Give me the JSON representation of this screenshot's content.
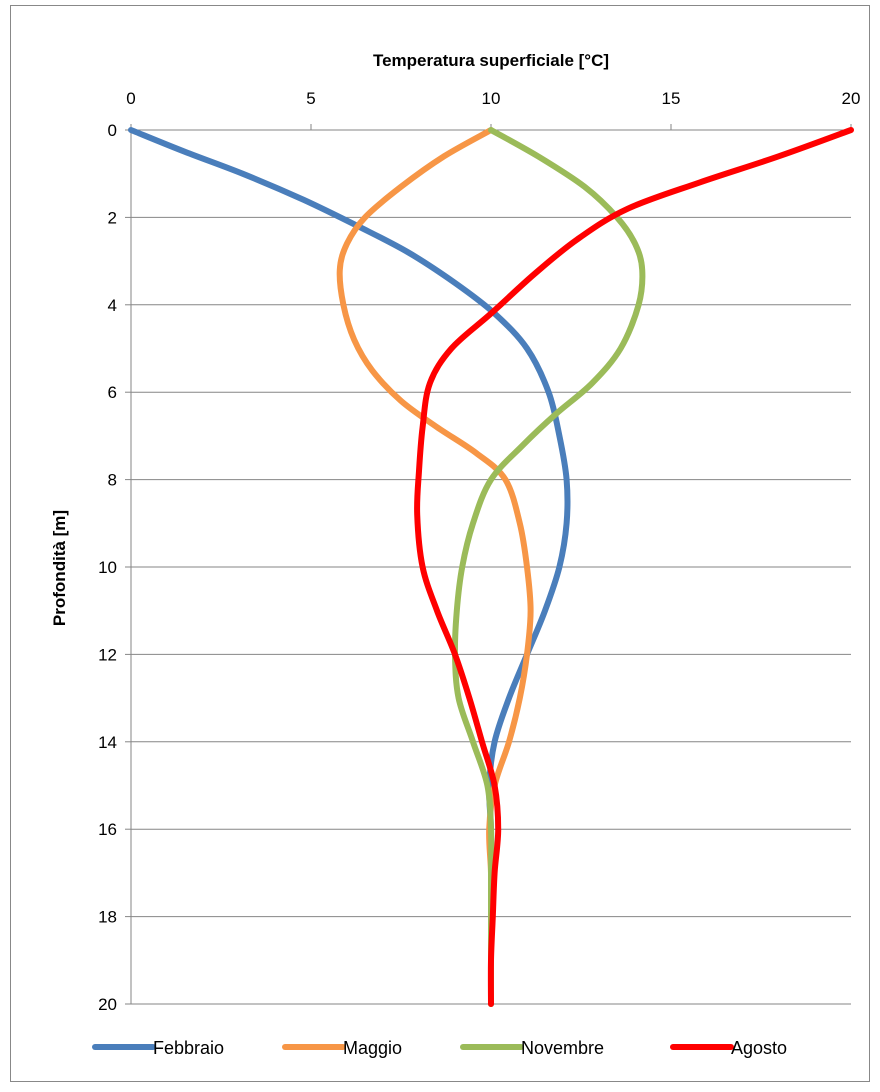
{
  "chart_data": {
    "type": "line",
    "title": "",
    "xlabel": "Temperatura  superficiale [°C]",
    "ylabel": "Profondità [m]",
    "x_axis_position": "top",
    "y_axis_inverted": true,
    "xlim": [
      0,
      20
    ],
    "ylim": [
      0,
      20
    ],
    "xticks": [
      0,
      5,
      10,
      15,
      20
    ],
    "yticks": [
      0,
      2,
      4,
      6,
      8,
      10,
      12,
      14,
      16,
      18,
      20
    ],
    "grid": "horizontal",
    "legend": "bottom",
    "series": [
      {
        "name": "Febbraio",
        "color": "#4a7ebb",
        "points": [
          [
            0,
            0
          ],
          [
            1.5,
            0.5
          ],
          [
            3.1,
            1
          ],
          [
            4.8,
            1.6
          ],
          [
            6.3,
            2.2
          ],
          [
            7.7,
            2.8
          ],
          [
            9,
            3.5
          ],
          [
            10.1,
            4.2
          ],
          [
            11,
            5
          ],
          [
            11.6,
            6
          ],
          [
            11.9,
            7
          ],
          [
            12.1,
            8
          ],
          [
            12.1,
            9
          ],
          [
            11.9,
            10
          ],
          [
            11.5,
            11
          ],
          [
            11.0,
            12
          ],
          [
            10.5,
            13
          ],
          [
            10.1,
            14
          ],
          [
            9.95,
            15
          ],
          [
            10,
            16
          ],
          [
            10,
            17
          ],
          [
            10,
            18
          ],
          [
            10,
            19
          ],
          [
            10,
            20
          ]
        ]
      },
      {
        "name": "Maggio",
        "color": "#f79646",
        "points": [
          [
            10,
            0
          ],
          [
            8.7,
            0.6
          ],
          [
            7.5,
            1.3
          ],
          [
            6.5,
            2
          ],
          [
            6.0,
            2.6
          ],
          [
            5.8,
            3.2
          ],
          [
            5.9,
            4
          ],
          [
            6.2,
            4.8
          ],
          [
            6.7,
            5.5
          ],
          [
            7.5,
            6.2
          ],
          [
            8.5,
            6.8
          ],
          [
            9.6,
            7.4
          ],
          [
            10.4,
            8
          ],
          [
            10.8,
            9
          ],
          [
            11.0,
            10
          ],
          [
            11.1,
            11
          ],
          [
            11.0,
            12
          ],
          [
            10.8,
            13
          ],
          [
            10.5,
            14
          ],
          [
            10.1,
            15
          ],
          [
            9.95,
            16
          ],
          [
            10,
            17
          ],
          [
            10,
            18
          ],
          [
            10,
            19
          ],
          [
            10,
            20
          ]
        ]
      },
      {
        "name": "Novembre",
        "color": "#9bbb59",
        "points": [
          [
            10,
            0
          ],
          [
            11.3,
            0.6
          ],
          [
            12.6,
            1.3
          ],
          [
            13.5,
            2
          ],
          [
            14.0,
            2.6
          ],
          [
            14.2,
            3.2
          ],
          [
            14.1,
            4
          ],
          [
            13.6,
            5
          ],
          [
            12.8,
            5.8
          ],
          [
            11.8,
            6.5
          ],
          [
            10.9,
            7.2
          ],
          [
            10.0,
            8
          ],
          [
            9.5,
            9
          ],
          [
            9.2,
            10
          ],
          [
            9.05,
            11
          ],
          [
            9.0,
            12
          ],
          [
            9.1,
            13
          ],
          [
            9.5,
            14
          ],
          [
            9.9,
            15
          ],
          [
            10,
            16
          ],
          [
            10,
            17
          ],
          [
            10,
            18
          ],
          [
            10,
            19
          ],
          [
            10,
            20
          ]
        ]
      },
      {
        "name": "Agosto",
        "color": "#ff0000",
        "points": [
          [
            20,
            0
          ],
          [
            18.0,
            0.6
          ],
          [
            15.8,
            1.2
          ],
          [
            13.8,
            1.8
          ],
          [
            12.4,
            2.5
          ],
          [
            11.2,
            3.3
          ],
          [
            10.0,
            4.2
          ],
          [
            8.9,
            5
          ],
          [
            8.3,
            5.8
          ],
          [
            8.1,
            6.8
          ],
          [
            8.0,
            7.8
          ],
          [
            7.95,
            8.8
          ],
          [
            8.1,
            10
          ],
          [
            8.5,
            11
          ],
          [
            9.0,
            12
          ],
          [
            9.4,
            13
          ],
          [
            9.75,
            14
          ],
          [
            10.1,
            15
          ],
          [
            10.2,
            16
          ],
          [
            10.1,
            17
          ],
          [
            10.05,
            18
          ],
          [
            10,
            19
          ],
          [
            10,
            20
          ]
        ]
      }
    ]
  }
}
